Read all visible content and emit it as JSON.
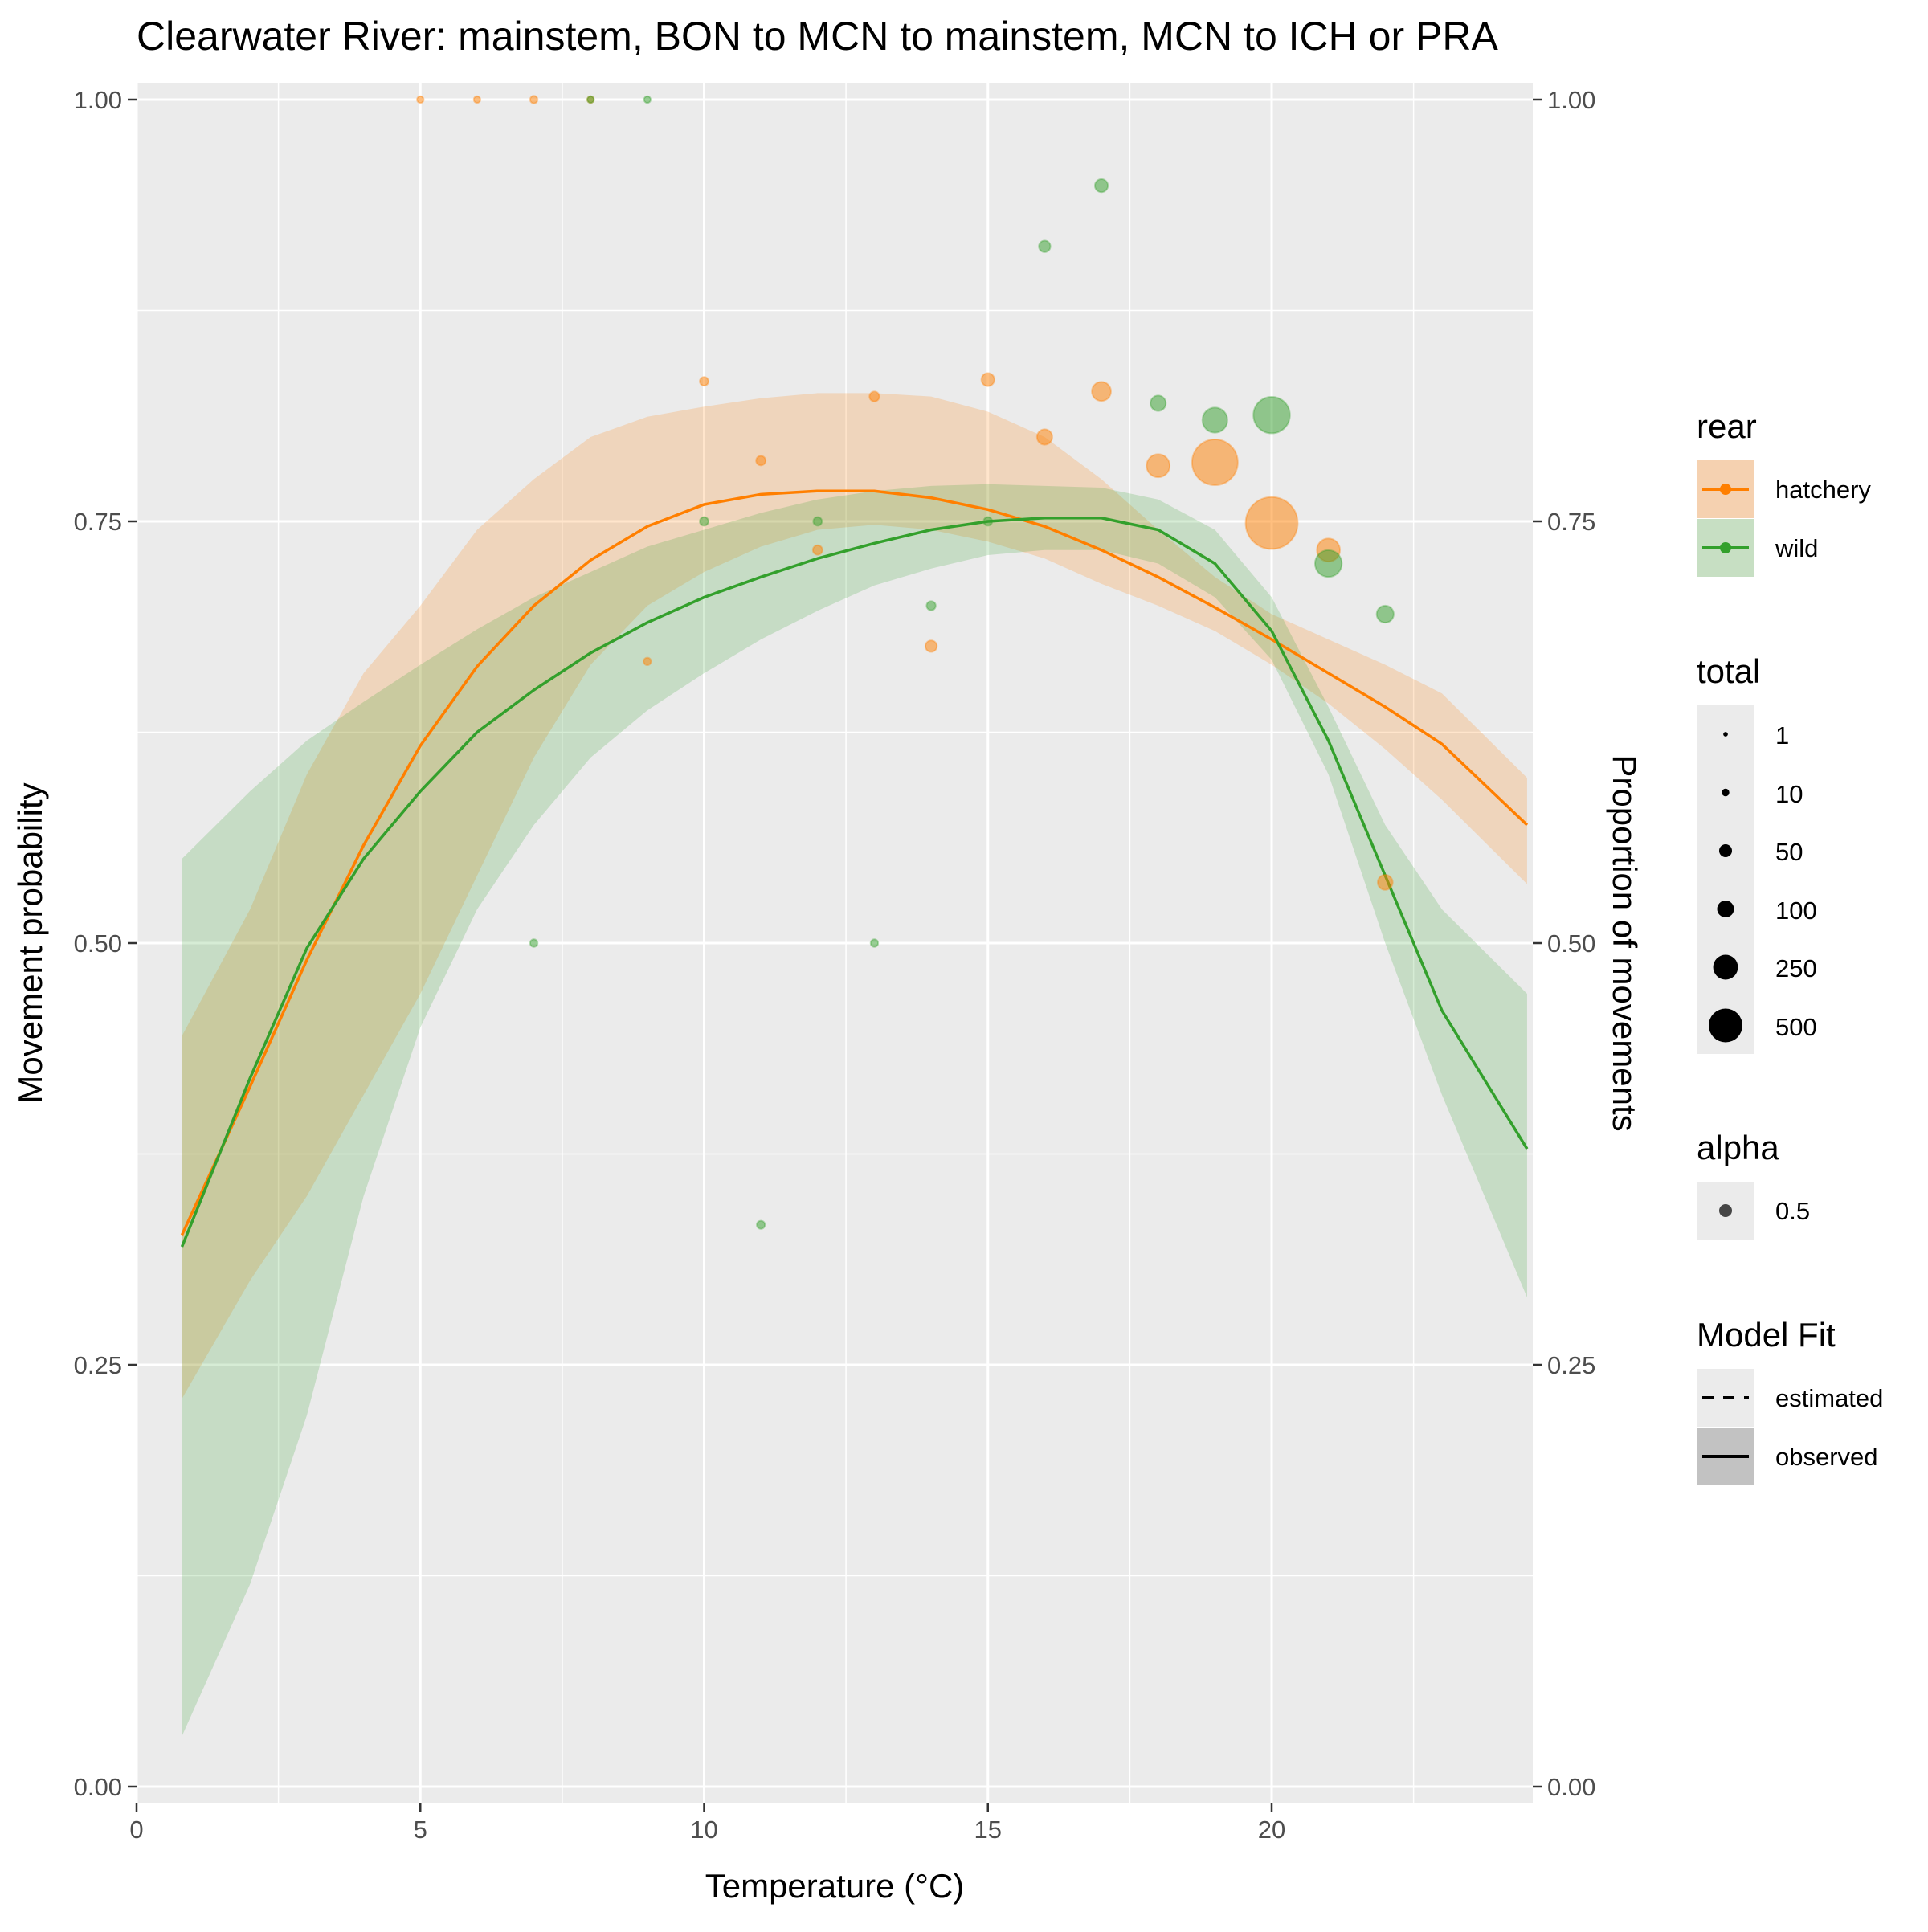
{
  "chart_data": {
    "type": "scatter",
    "title": "Clearwater River: mainstem, BON to MCN to mainstem, MCN to ICH or PRA",
    "xlabel": "Temperature (°C)",
    "ylabel": "Movement probability",
    "y2label": "Proportion of movements",
    "xlim": [
      0,
      24.6
    ],
    "ylim": [
      -0.01,
      1.01
    ],
    "x_ticks": [
      0,
      5,
      10,
      15,
      20
    ],
    "x_tick_labels": [
      "0",
      "5",
      "10",
      "15",
      "20"
    ],
    "y_ticks": [
      0,
      0.25,
      0.5,
      0.75,
      1.0
    ],
    "y_tick_labels": [
      "0.00",
      "0.25",
      "0.50",
      "0.75",
      "1.00"
    ],
    "grid": true,
    "legend_position": "right",
    "colors": {
      "hatchery": "#ff7f00",
      "wild": "#33a02c",
      "panel": "#ebebeb",
      "grid": "#ffffff"
    },
    "series": [
      {
        "name": "hatchery",
        "fit_x": [
          0.8,
          2,
          3,
          4,
          5,
          6,
          7,
          8,
          9,
          10,
          11,
          12,
          13,
          14,
          15,
          16,
          17,
          18,
          19,
          20,
          21,
          22,
          23,
          24.5
        ],
        "fit_y": [
          0.327,
          0.415,
          0.49,
          0.558,
          0.617,
          0.664,
          0.7,
          0.727,
          0.747,
          0.76,
          0.766,
          0.768,
          0.768,
          0.764,
          0.757,
          0.747,
          0.733,
          0.717,
          0.699,
          0.68,
          0.66,
          0.64,
          0.618,
          0.57
        ],
        "ci_lower": [
          0.23,
          0.3,
          0.35,
          0.41,
          0.47,
          0.54,
          0.61,
          0.665,
          0.7,
          0.72,
          0.735,
          0.745,
          0.748,
          0.745,
          0.738,
          0.728,
          0.713,
          0.7,
          0.685,
          0.665,
          0.642,
          0.615,
          0.585,
          0.535
        ],
        "ci_upper": [
          0.445,
          0.52,
          0.6,
          0.66,
          0.7,
          0.745,
          0.775,
          0.8,
          0.812,
          0.818,
          0.823,
          0.826,
          0.826,
          0.824,
          0.815,
          0.8,
          0.775,
          0.745,
          0.717,
          0.695,
          0.68,
          0.665,
          0.648,
          0.598
        ],
        "points": [
          {
            "x": 5,
            "y": 1.0,
            "total": 1
          },
          {
            "x": 6,
            "y": 1.0,
            "total": 1
          },
          {
            "x": 7,
            "y": 1.0,
            "total": 2
          },
          {
            "x": 8,
            "y": 1.0,
            "total": 1
          },
          {
            "x": 9,
            "y": 0.667,
            "total": 2
          },
          {
            "x": 10,
            "y": 0.833,
            "total": 4
          },
          {
            "x": 11,
            "y": 0.786,
            "total": 6
          },
          {
            "x": 12,
            "y": 0.733,
            "total": 6
          },
          {
            "x": 13,
            "y": 0.824,
            "total": 7
          },
          {
            "x": 14,
            "y": 0.676,
            "total": 12
          },
          {
            "x": 15,
            "y": 0.834,
            "total": 18
          },
          {
            "x": 16,
            "y": 0.8,
            "total": 30
          },
          {
            "x": 17,
            "y": 0.827,
            "total": 55
          },
          {
            "x": 18,
            "y": 0.783,
            "total": 90
          },
          {
            "x": 19,
            "y": 0.785,
            "total": 450
          },
          {
            "x": 20,
            "y": 0.749,
            "total": 600
          },
          {
            "x": 21,
            "y": 0.733,
            "total": 90
          },
          {
            "x": 22,
            "y": 0.536,
            "total": 28
          }
        ]
      },
      {
        "name": "wild",
        "fit_x": [
          0.8,
          2,
          3,
          4,
          5,
          6,
          7,
          8,
          9,
          10,
          11,
          12,
          13,
          14,
          15,
          16,
          17,
          18,
          19,
          20,
          21,
          22,
          23,
          24.5
        ],
        "fit_y": [
          0.32,
          0.42,
          0.497,
          0.55,
          0.59,
          0.625,
          0.65,
          0.672,
          0.69,
          0.705,
          0.717,
          0.728,
          0.737,
          0.745,
          0.75,
          0.752,
          0.752,
          0.745,
          0.725,
          0.685,
          0.62,
          0.54,
          0.46,
          0.378
        ],
        "ci_lower": [
          0.03,
          0.12,
          0.22,
          0.35,
          0.45,
          0.52,
          0.57,
          0.61,
          0.638,
          0.66,
          0.68,
          0.697,
          0.712,
          0.722,
          0.73,
          0.733,
          0.733,
          0.725,
          0.705,
          0.668,
          0.6,
          0.5,
          0.41,
          0.29
        ],
        "ci_upper": [
          0.55,
          0.59,
          0.62,
          0.643,
          0.665,
          0.686,
          0.705,
          0.72,
          0.735,
          0.745,
          0.755,
          0.763,
          0.768,
          0.771,
          0.772,
          0.771,
          0.77,
          0.763,
          0.745,
          0.705,
          0.64,
          0.57,
          0.52,
          0.47
        ],
        "points": [
          {
            "x": 7,
            "y": 0.5,
            "total": 2
          },
          {
            "x": 8,
            "y": 1.0,
            "total": 1
          },
          {
            "x": 9,
            "y": 1.0,
            "total": 1
          },
          {
            "x": 10,
            "y": 0.75,
            "total": 4
          },
          {
            "x": 11,
            "y": 0.333,
            "total": 3
          },
          {
            "x": 12,
            "y": 0.75,
            "total": 4
          },
          {
            "x": 13,
            "y": 0.5,
            "total": 2
          },
          {
            "x": 14,
            "y": 0.7,
            "total": 5
          },
          {
            "x": 15,
            "y": 0.75,
            "total": 4
          },
          {
            "x": 16,
            "y": 0.913,
            "total": 12
          },
          {
            "x": 17,
            "y": 0.949,
            "total": 18
          },
          {
            "x": 18,
            "y": 0.82,
            "total": 30
          },
          {
            "x": 19,
            "y": 0.81,
            "total": 110
          },
          {
            "x": 20,
            "y": 0.813,
            "total": 270
          },
          {
            "x": 21,
            "y": 0.725,
            "total": 130
          },
          {
            "x": 22,
            "y": 0.695,
            "total": 40
          }
        ]
      }
    ],
    "legends": {
      "rear": {
        "title": "rear",
        "items": [
          "hatchery",
          "wild"
        ]
      },
      "total": {
        "title": "total",
        "items": [
          "1",
          "10",
          "50",
          "100",
          "250",
          "500"
        ],
        "values": [
          1,
          10,
          50,
          100,
          250,
          500
        ]
      },
      "alpha": {
        "title": "alpha",
        "items": [
          "0.5"
        ]
      },
      "model_fit": {
        "title": "Model Fit",
        "items": [
          "estimated",
          "observed"
        ]
      }
    }
  }
}
